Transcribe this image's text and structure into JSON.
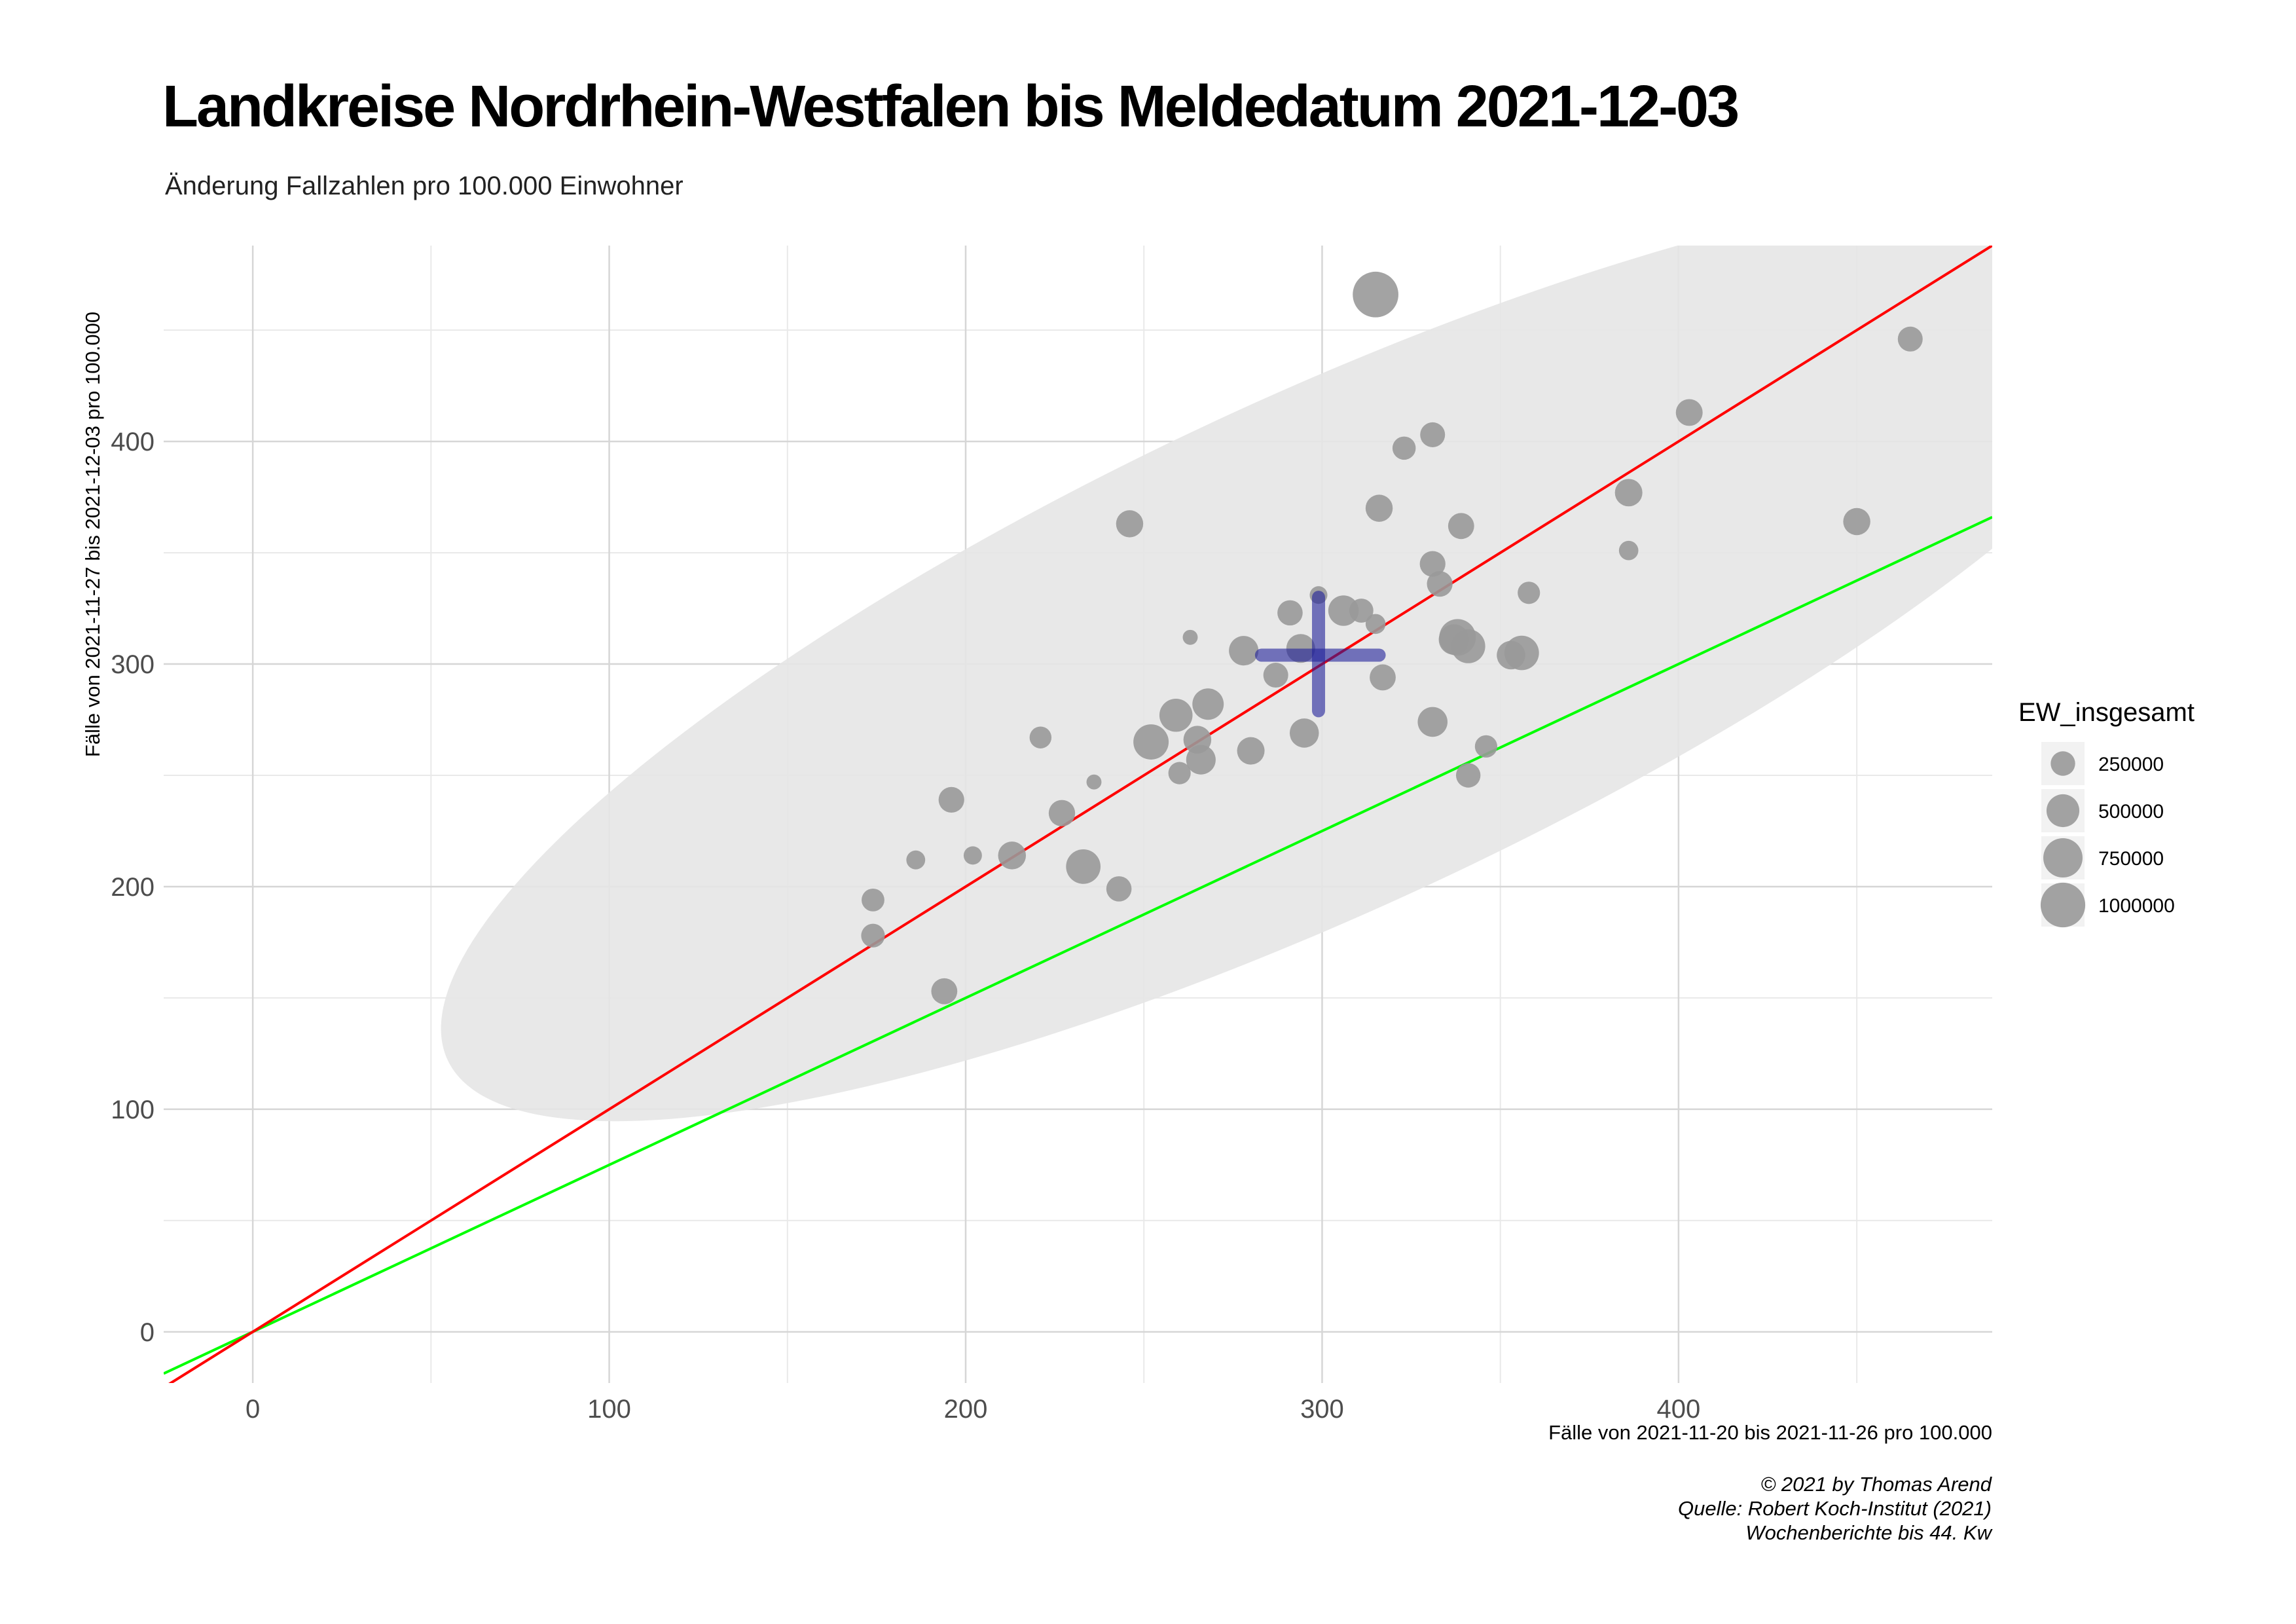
{
  "title": "Landkreise Nordrhein-Westfalen bis Meldedatum 2021-12-03",
  "subtitle": "Änderung Fallzahlen pro 100.000 Einwohner",
  "caption": [
    "© 2021 by Thomas Arend",
    "Quelle: Robert Koch-Institut (2021)",
    "Wochenberichte bis 44. Kw"
  ],
  "chart_data": {
    "type": "scatter",
    "xlabel": "Fälle von 2021-11-20 bis 2021-11-26 pro 100.000",
    "ylabel": "Fälle von 2021-11-27 bis 2021-12-03 pro 100.000",
    "xlim": [
      -25,
      488
    ],
    "ylim": [
      -23,
      488
    ],
    "xticks": [
      0,
      100,
      200,
      300,
      400
    ],
    "yticks": [
      0,
      100,
      200,
      300,
      400
    ],
    "grid": true,
    "legend": {
      "title": "EW_insgesamt",
      "position": "right",
      "items": [
        {
          "label": "250000",
          "value": 250000
        },
        {
          "label": "500000",
          "value": 500000
        },
        {
          "label": "750000",
          "value": 750000
        },
        {
          "label": "1000000",
          "value": 1000000
        }
      ]
    },
    "colors": {
      "points": "#999999",
      "red_line": "#ff0000",
      "green_line": "#00ff00",
      "center_cross": "#1f1f99",
      "ellipse": "#e6e6e6"
    },
    "reference_lines": [
      {
        "color": "red",
        "slope": 1.0,
        "intercept": 0
      },
      {
        "color": "green",
        "slope": 0.75,
        "intercept": 0
      }
    ],
    "ellipse": {
      "center": [
        300,
        305
      ],
      "semi_major": 306,
      "semi_minor": 81,
      "angle_deg": 36.7
    },
    "center_cross": {
      "x": 299,
      "y": 304,
      "x_range": [
        283,
        316
      ],
      "y_range": [
        279,
        330
      ]
    },
    "points": [
      {
        "x": 315,
        "y": 466,
        "ew": 1050000
      },
      {
        "x": 465,
        "y": 446,
        "ew": 260000
      },
      {
        "x": 403,
        "y": 413,
        "ew": 310000
      },
      {
        "x": 331,
        "y": 403,
        "ew": 260000
      },
      {
        "x": 323,
        "y": 397,
        "ew": 220000
      },
      {
        "x": 386,
        "y": 377,
        "ew": 330000
      },
      {
        "x": 316,
        "y": 370,
        "ew": 320000
      },
      {
        "x": 246,
        "y": 363,
        "ew": 320000
      },
      {
        "x": 339,
        "y": 362,
        "ew": 290000
      },
      {
        "x": 450,
        "y": 364,
        "ew": 320000
      },
      {
        "x": 386,
        "y": 351,
        "ew": 140000
      },
      {
        "x": 331,
        "y": 345,
        "ew": 280000
      },
      {
        "x": 333,
        "y": 336,
        "ew": 280000
      },
      {
        "x": 358,
        "y": 332,
        "ew": 200000
      },
      {
        "x": 299,
        "y": 331,
        "ew": 110000
      },
      {
        "x": 306,
        "y": 324,
        "ew": 420000
      },
      {
        "x": 311,
        "y": 324,
        "ew": 240000
      },
      {
        "x": 291,
        "y": 323,
        "ew": 270000
      },
      {
        "x": 315,
        "y": 318,
        "ew": 150000
      },
      {
        "x": 263,
        "y": 312,
        "ew": 70000
      },
      {
        "x": 338,
        "y": 312,
        "ew": 640000
      },
      {
        "x": 337,
        "y": 311,
        "ew": 420000
      },
      {
        "x": 341,
        "y": 308,
        "ew": 540000
      },
      {
        "x": 278,
        "y": 306,
        "ew": 390000
      },
      {
        "x": 294,
        "y": 307,
        "ew": 370000
      },
      {
        "x": 353,
        "y": 304,
        "ew": 360000
      },
      {
        "x": 356,
        "y": 305,
        "ew": 560000
      },
      {
        "x": 287,
        "y": 295,
        "ew": 260000
      },
      {
        "x": 317,
        "y": 294,
        "ew": 290000
      },
      {
        "x": 268,
        "y": 282,
        "ew": 450000
      },
      {
        "x": 259,
        "y": 277,
        "ew": 510000
      },
      {
        "x": 331,
        "y": 274,
        "ew": 400000
      },
      {
        "x": 295,
        "y": 269,
        "ew": 380000
      },
      {
        "x": 265,
        "y": 266,
        "ew": 340000
      },
      {
        "x": 252,
        "y": 265,
        "ew": 590000
      },
      {
        "x": 221,
        "y": 267,
        "ew": 190000
      },
      {
        "x": 346,
        "y": 263,
        "ew": 200000
      },
      {
        "x": 280,
        "y": 261,
        "ew": 330000
      },
      {
        "x": 266,
        "y": 257,
        "ew": 390000
      },
      {
        "x": 260,
        "y": 251,
        "ew": 200000
      },
      {
        "x": 341,
        "y": 250,
        "ew": 250000
      },
      {
        "x": 236,
        "y": 247,
        "ew": 70000
      },
      {
        "x": 196,
        "y": 239,
        "ew": 280000
      },
      {
        "x": 227,
        "y": 233,
        "ew": 300000
      },
      {
        "x": 213,
        "y": 214,
        "ew": 340000
      },
      {
        "x": 202,
        "y": 214,
        "ew": 120000
      },
      {
        "x": 186,
        "y": 212,
        "ew": 130000
      },
      {
        "x": 233,
        "y": 209,
        "ew": 560000
      },
      {
        "x": 243,
        "y": 199,
        "ew": 270000
      },
      {
        "x": 174,
        "y": 194,
        "ew": 210000
      },
      {
        "x": 174,
        "y": 178,
        "ew": 230000
      },
      {
        "x": 194,
        "y": 153,
        "ew": 290000
      }
    ]
  }
}
